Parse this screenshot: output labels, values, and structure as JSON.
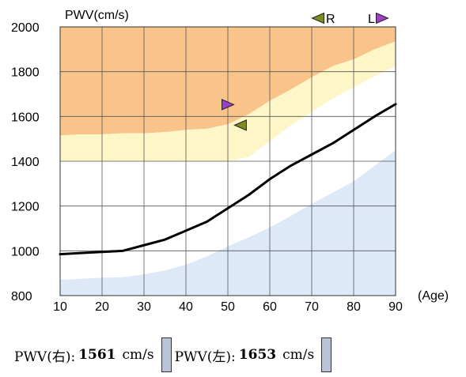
{
  "colors": {
    "high_zone": "#f9c48a",
    "border_zone": "#fdf7c8",
    "normal_zone": "#ffffff",
    "low_zone": "#dde8f8",
    "curve": "#000000",
    "marker_right": "#7f8c20",
    "marker_left": "#9b3fc4",
    "swatch": "#b8c3d9"
  },
  "chart_data": {
    "type": "line",
    "ylabel": "PWV(cm/s)",
    "xlabel": "(Age)",
    "xlim": [
      10,
      90
    ],
    "ylim": [
      800,
      2000
    ],
    "x_ticks": [
      10,
      20,
      30,
      40,
      50,
      60,
      70,
      80,
      90
    ],
    "y_ticks": [
      800,
      1000,
      1200,
      1400,
      1600,
      1800,
      2000
    ],
    "grid": true,
    "series": [
      {
        "x": [
          10,
          15,
          20,
          25,
          30,
          35,
          40,
          45,
          50,
          55,
          60,
          65,
          70,
          75,
          80,
          85,
          90
        ],
        "y": [
          985,
          990,
          995,
          1000,
          1025,
          1050,
          1090,
          1130,
          1190,
          1250,
          1320,
          1380,
          1430,
          1480,
          1540,
          1600,
          1655
        ]
      }
    ],
    "zones": {
      "high_lower": {
        "x": [
          10,
          15,
          20,
          25,
          30,
          35,
          40,
          45,
          50,
          55,
          60,
          65,
          70,
          75,
          80,
          85,
          90
        ],
        "y": [
          1515,
          1520,
          1520,
          1525,
          1525,
          1530,
          1540,
          1545,
          1565,
          1610,
          1670,
          1720,
          1775,
          1825,
          1855,
          1900,
          1935
        ]
      },
      "border_lower": {
        "x": [
          10,
          15,
          20,
          25,
          30,
          35,
          40,
          45,
          50,
          55,
          60,
          65,
          70,
          75,
          80,
          85,
          90
        ],
        "y": [
          1400,
          1400,
          1400,
          1400,
          1400,
          1400,
          1400,
          1400,
          1400,
          1420,
          1490,
          1560,
          1620,
          1680,
          1730,
          1780,
          1825
        ]
      },
      "low_upper": {
        "x": [
          10,
          15,
          20,
          25,
          30,
          35,
          40,
          45,
          50,
          55,
          60,
          65,
          70,
          75,
          80,
          85,
          90
        ],
        "y": [
          870,
          875,
          880,
          882,
          895,
          912,
          938,
          975,
          1020,
          1060,
          1105,
          1155,
          1210,
          1260,
          1310,
          1380,
          1450
        ]
      }
    },
    "markers": [
      {
        "label": "R",
        "age": 53,
        "pwv": 1561,
        "direction": "left",
        "color": "#7f8c20"
      },
      {
        "label": "L",
        "age": 50,
        "pwv": 1653,
        "direction": "right",
        "color": "#9b3fc4"
      }
    ],
    "legend_markers": [
      {
        "label": "R",
        "direction": "left",
        "color": "#7f8c20"
      },
      {
        "label": "L",
        "direction": "right",
        "color": "#9b3fc4"
      }
    ]
  },
  "readout": {
    "right_label": "PWV(右):",
    "right_value": "1561",
    "right_unit": "cm/s",
    "left_label": "PWV(左):",
    "left_value": "1653",
    "left_unit": "cm/s"
  }
}
